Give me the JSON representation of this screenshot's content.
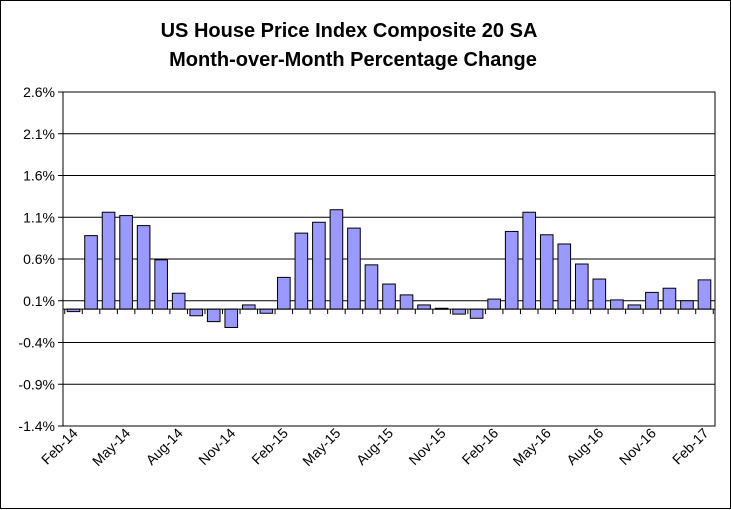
{
  "chart_data": {
    "type": "bar",
    "title_lines": [
      "US House Price Index Composite  20 SA",
      "Month-over-Month Percentage Change"
    ],
    "xlabel": "",
    "ylabel": "",
    "ylim": [
      -1.4,
      2.6
    ],
    "y_ticks": [
      "2.6%",
      "2.1%",
      "1.6%",
      "1.1%",
      "0.6%",
      "0.1%",
      "-0.4%",
      "-0.9%",
      "-1.4%"
    ],
    "x_tick_labels": [
      "Feb-14",
      "May-14",
      "Aug-14",
      "Nov-14",
      "Feb-15",
      "May-15",
      "Aug-15",
      "Nov-15",
      "Feb-16",
      "May-16",
      "Aug-16",
      "Nov-16",
      "Feb-17"
    ],
    "categories": [
      "Feb-14",
      "Mar-14",
      "Apr-14",
      "May-14",
      "Jun-14",
      "Jul-14",
      "Aug-14",
      "Sep-14",
      "Oct-14",
      "Nov-14",
      "Dec-14",
      "Jan-15",
      "Feb-15",
      "Mar-15",
      "Apr-15",
      "May-15",
      "Jun-15",
      "Jul-15",
      "Aug-15",
      "Sep-15",
      "Oct-15",
      "Nov-15",
      "Dec-15",
      "Jan-16",
      "Feb-16",
      "Mar-16",
      "Apr-16",
      "May-16",
      "Jun-16",
      "Jul-16",
      "Aug-16",
      "Sep-16",
      "Oct-16",
      "Nov-16",
      "Dec-16",
      "Jan-17",
      "Feb-17"
    ],
    "values": [
      -0.03,
      0.88,
      1.16,
      1.12,
      1.0,
      0.59,
      0.19,
      -0.08,
      -0.15,
      -0.22,
      0.05,
      -0.05,
      0.38,
      0.91,
      1.04,
      1.19,
      0.97,
      0.53,
      0.3,
      0.17,
      0.05,
      0.01,
      -0.06,
      -0.11,
      0.12,
      0.93,
      1.16,
      0.89,
      0.78,
      0.54,
      0.36,
      0.11,
      0.05,
      0.2,
      0.25,
      0.1,
      0.35
    ],
    "grid": true,
    "bar_color": "#9999ff",
    "bar_edge_color": "#000000"
  }
}
